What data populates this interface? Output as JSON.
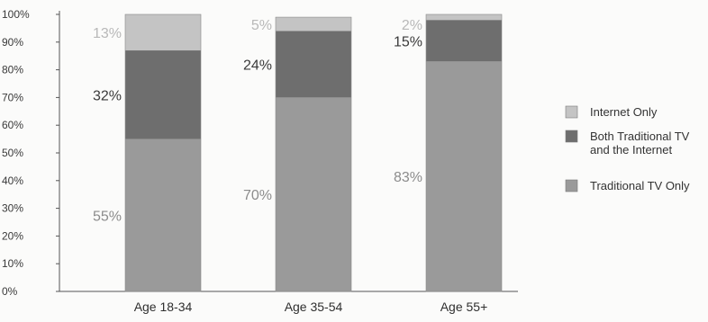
{
  "chart_data": {
    "type": "bar",
    "stacked": true,
    "categories": [
      "Age 18-34",
      "Age 35-54",
      "Age 55+"
    ],
    "series": [
      {
        "name": "Traditional TV Only",
        "values": [
          55,
          70,
          83
        ],
        "labels": [
          "55%",
          "70%",
          "83%"
        ],
        "color": "#9a9a9a"
      },
      {
        "name": "Both Traditional TV and the Internet",
        "values": [
          32,
          24,
          15
        ],
        "labels": [
          "32%",
          "24%",
          "15%"
        ],
        "color": "#6e6e6e"
      },
      {
        "name": "Internet Only",
        "values": [
          13,
          5,
          2
        ],
        "labels": [
          "13%",
          "5%",
          "2%"
        ],
        "color": "#c4c4c4"
      }
    ],
    "y_ticks": [
      "0%",
      "10%",
      "20%",
      "30%",
      "40%",
      "50%",
      "60%",
      "70%",
      "80%",
      "90%",
      "100%"
    ],
    "ylim": [
      0,
      100
    ],
    "grid": false,
    "legend_placement": "right",
    "legend": [
      {
        "label_lines": [
          "Internet Only"
        ],
        "color": "#c4c4c4"
      },
      {
        "label_lines": [
          "Both Traditional TV",
          "and the Internet"
        ],
        "color": "#6e6e6e"
      },
      {
        "label_lines": [
          "Traditional TV Only"
        ],
        "color": "#9a9a9a"
      }
    ]
  }
}
